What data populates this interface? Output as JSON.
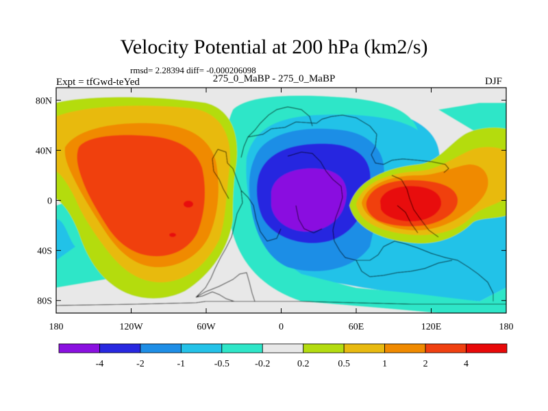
{
  "title": "Velocity Potential at 200 hPa (km2/s)",
  "stats": "rmsd= 2.28394 diff= -0.000206098",
  "left_label": "Expt = tfGwd-teYed",
  "center_label": "275_0_MaBP - 275_0_MaBP",
  "right_label": "DJF",
  "chart_data": {
    "type": "heatmap",
    "subtype": "filled contour map",
    "title": "Velocity Potential at 200 hPa (km2/s)",
    "x_ticks": [
      "180",
      "120W",
      "60W",
      "0",
      "60E",
      "120E",
      "180"
    ],
    "x_tick_values": [
      -180,
      -120,
      -60,
      0,
      60,
      120,
      180
    ],
    "y_ticks": [
      "80N",
      "40N",
      "0",
      "40S",
      "80S"
    ],
    "y_tick_values": [
      80,
      40,
      0,
      -40,
      -80
    ],
    "xlim": [
      -180,
      180
    ],
    "ylim": [
      -90,
      90
    ],
    "colorbar": {
      "labels": [
        "-4",
        "-2",
        "-1",
        "-0.5",
        "-0.2",
        "0.2",
        "0.5",
        "1",
        "2",
        "4"
      ],
      "levels": [
        -4,
        -2,
        -1,
        -0.5,
        -0.2,
        0.2,
        0.5,
        1,
        2,
        4
      ],
      "colors": [
        "#8a10e0",
        "#2828e0",
        "#1e8ee6",
        "#24c2e8",
        "#2ee6c8",
        "#e8e8e8",
        "#b4dc10",
        "#e8ba10",
        "#f08a00",
        "#f04010",
        "#e80808"
      ]
    },
    "features": [
      {
        "name": "positive center",
        "lon": -90,
        "lat": -10,
        "value": 2.5
      },
      {
        "name": "negative center",
        "lon": 25,
        "lat": 0,
        "value": -3
      },
      {
        "name": "positive center",
        "lon": 100,
        "lat": 0,
        "value": 4
      }
    ]
  }
}
